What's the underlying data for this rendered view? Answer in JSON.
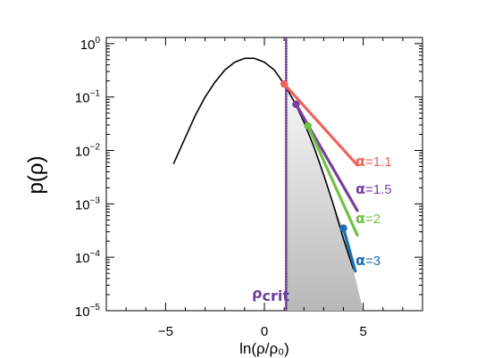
{
  "chart_data": {
    "type": "line",
    "xlabel": "ln(ρ/ρ₀)",
    "ylabel": "p(ρ)",
    "xlim": [
      -8,
      8
    ],
    "ylim": [
      1e-05,
      1.3
    ],
    "y_scale": "log",
    "grid": false,
    "x_ticks": [
      -5,
      0,
      5
    ],
    "x_tick_labels": [
      "−5",
      "0",
      "5"
    ],
    "y_ticks": [
      {
        "value": 1,
        "base": "10",
        "exp": "0"
      },
      {
        "value": 0.1,
        "base": "10",
        "exp": "−1"
      },
      {
        "value": 0.01,
        "base": "10",
        "exp": "−2"
      },
      {
        "value": 0.001,
        "base": "10",
        "exp": "−3"
      },
      {
        "value": 0.0001,
        "base": "10",
        "exp": "−4"
      },
      {
        "value": 1e-05,
        "base": "10",
        "exp": "−5"
      }
    ],
    "lognormal_curve": {
      "color": "#000000",
      "points": [
        [
          -4.6,
          0.0056
        ],
        [
          -4.0,
          0.0175
        ],
        [
          -3.5,
          0.045
        ],
        [
          -3.0,
          0.1
        ],
        [
          -2.5,
          0.19
        ],
        [
          -2.0,
          0.32
        ],
        [
          -1.5,
          0.45
        ],
        [
          -1.0,
          0.53
        ],
        [
          -0.5,
          0.53
        ],
        [
          0.0,
          0.45
        ],
        [
          0.5,
          0.32
        ],
        [
          1.0,
          0.175
        ],
        [
          1.5,
          0.083
        ],
        [
          2.0,
          0.034
        ],
        [
          2.5,
          0.0118
        ],
        [
          3.0,
          0.0035
        ],
        [
          3.5,
          0.00094
        ],
        [
          4.0,
          0.00022
        ],
        [
          4.5,
          6e-05
        ]
      ]
    },
    "critical_density": {
      "x": 1.1,
      "label_main": "ρ",
      "label_sub": "crit",
      "color": "#6a3d9a"
    },
    "shaded_region": {
      "x_from": 1.1,
      "x_to": 5.0,
      "y_floor": 1e-05,
      "upper": [
        [
          1.1,
          0.175
        ],
        [
          1.6,
          0.075
        ],
        [
          2.0,
          0.034
        ],
        [
          2.5,
          0.0118
        ],
        [
          3.0,
          0.0035
        ],
        [
          3.5,
          0.00094
        ],
        [
          4.0,
          0.00035
        ],
        [
          5.0,
          1e-05
        ]
      ]
    },
    "power_law_tails": [
      {
        "label_greek": "α",
        "label_value": "=1.1",
        "color": "#f0625a",
        "start": [
          1.0,
          0.175
        ],
        "end": [
          4.7,
          0.0053
        ]
      },
      {
        "label_greek": "α",
        "label_value": "=1.5",
        "color": "#7b3f9e",
        "start": [
          1.6,
          0.073
        ],
        "end": [
          4.7,
          0.00075
        ]
      },
      {
        "label_greek": "α",
        "label_value": "=2",
        "color": "#6fc143",
        "start": [
          2.2,
          0.029
        ],
        "end": [
          4.7,
          0.00026
        ]
      },
      {
        "label_greek": "α",
        "label_value": "=3",
        "color": "#1d6eb5",
        "start": [
          4.0,
          0.00035
        ],
        "end": [
          4.6,
          5.5e-05
        ]
      }
    ]
  }
}
